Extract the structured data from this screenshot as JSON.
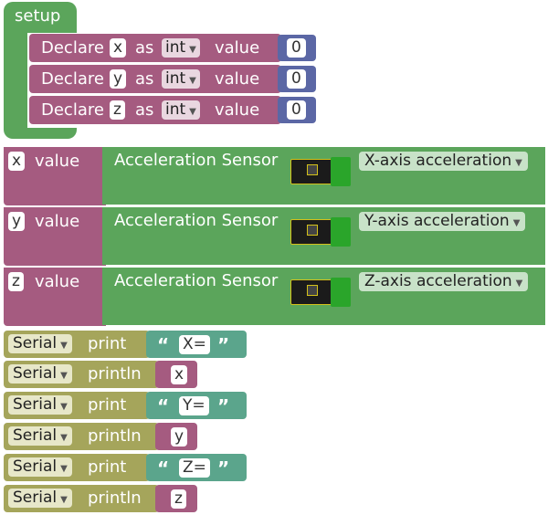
{
  "setup": {
    "label": "setup"
  },
  "declares": [
    {
      "keyword": "Declare",
      "var": "x",
      "as": "as",
      "type": "int",
      "value_label": "value",
      "value": "0"
    },
    {
      "keyword": "Declare",
      "var": "y",
      "as": "as",
      "type": "int",
      "value_label": "value",
      "value": "0"
    },
    {
      "keyword": "Declare",
      "var": "z",
      "as": "as",
      "type": "int",
      "value_label": "value",
      "value": "0"
    }
  ],
  "assigns": [
    {
      "var": "x",
      "value_label": "value",
      "sensor": "Acceleration Sensor",
      "axis": "X-axis acceleration"
    },
    {
      "var": "y",
      "value_label": "value",
      "sensor": "Acceleration Sensor",
      "axis": "Y-axis acceleration"
    },
    {
      "var": "z",
      "value_label": "value",
      "sensor": "Acceleration Sensor",
      "axis": "Z-axis acceleration"
    }
  ],
  "serial": [
    {
      "port": "Serial",
      "cmd": "print",
      "kind": "string",
      "arg": "X="
    },
    {
      "port": "Serial",
      "cmd": "println",
      "kind": "var",
      "arg": "x"
    },
    {
      "port": "Serial",
      "cmd": "print",
      "kind": "string",
      "arg": "Y="
    },
    {
      "port": "Serial",
      "cmd": "println",
      "kind": "var",
      "arg": "y"
    },
    {
      "port": "Serial",
      "cmd": "print",
      "kind": "string",
      "arg": "Z="
    },
    {
      "port": "Serial",
      "cmd": "println",
      "kind": "var",
      "arg": "z"
    }
  ],
  "glyphs": {
    "open_quote": "“",
    "close_quote": "”",
    "dropdown": "▼"
  },
  "colors": {
    "setup": "#5ba55b",
    "variable": "#a55b80",
    "math": "#5b67a5",
    "text": "#5ba58c",
    "serial": "#a5a55b"
  }
}
